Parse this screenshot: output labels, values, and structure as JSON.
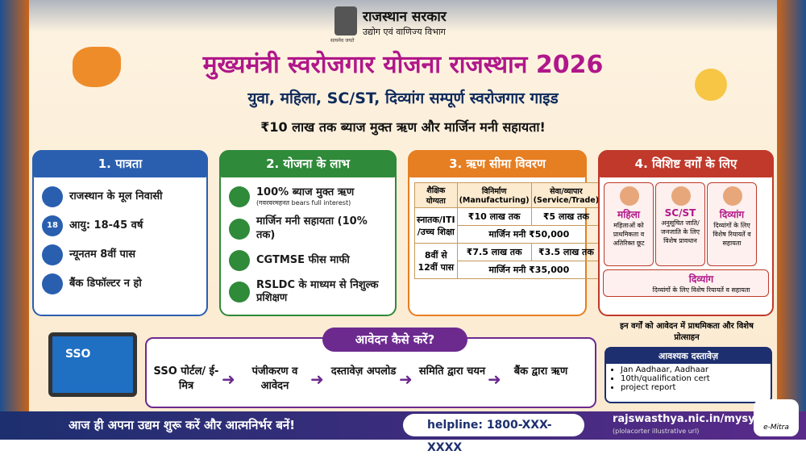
{
  "header": {
    "govt": "राजस्थान सरकार",
    "department": "उद्योग एवं वाणिज्य विभाग",
    "emblem_caption": "सत्यमेव जयते",
    "title": "मुख्यमंत्री स्वरोजगार योजना राजस्थान 2026",
    "subtitle": "युवा, महिला, SC/ST, दिव्यांग सम्पूर्ण स्वरोजगार गाइड",
    "tagline": "₹10 लाख तक ब्याज मुक्त ऋण और मार्जिन मनी सहायता!"
  },
  "eligibility": {
    "title": "1. पात्रता",
    "items": [
      "राजस्थान के मूल निवासी",
      "आयु: 18-45 वर्ष",
      "न्यूनतम 8वीं पास",
      "बैंक डिफॉल्टर न हो"
    ],
    "age_icon": "18"
  },
  "benefits": {
    "title": "2. योजना के लाभ",
    "items": [
      {
        "text": "100% ब्याज मुक्त ऋण",
        "note": "(गवरवरमहनत bears full interest)"
      },
      {
        "text": "मार्जिन मनी सहायता (10% तक)"
      },
      {
        "text": "CGTMSE फीस माफी"
      },
      {
        "text": "RSLDC के माध्यम से निशुल्क प्रशिक्षण"
      }
    ]
  },
  "loan_limits": {
    "title": "3. ऋण सीमा विवरण",
    "headers": [
      "शैक्षिक योग्यता",
      "विनिर्माण (Manufacturing)",
      "सेवा/व्यापार (Service/Trade)"
    ],
    "rows": [
      {
        "qualification": "स्नातक/ITI /उच्च शिक्षा",
        "manufacturing": "₹10 लाख तक",
        "service": "₹5 लाख तक",
        "margin": "मार्जिन मनी ₹50,000"
      },
      {
        "qualification": "8वीं से 12वीं पास",
        "manufacturing": "₹7.5 लाख तक",
        "service": "₹3.5 लाख तक",
        "margin": "मार्जिन मनी ₹35,000"
      }
    ]
  },
  "special": {
    "title": "4. विशिष्ट वर्गों के लिए",
    "cards": [
      {
        "name": "महिला",
        "text": "महिलाओं को प्राथमिकता व अतिरिक्त छूट"
      },
      {
        "name": "SC/ST",
        "text": "अनुसूचित जाति/ जनजाति के लिए विशेष प्रावधान"
      },
      {
        "name": "दिव्यांग",
        "text": "दिव्यांगों के लिए विशेष रियायतें व सहायता"
      }
    ],
    "wide_card": {
      "name": "दिव्यांग",
      "text": "दिव्यांगों के लिए विशेष रियायतें व सहायता"
    },
    "note": "इन वर्गों को आवेदन में प्राथमिकता और विशेष प्रोत्साहन"
  },
  "documents": {
    "title": "आवश्यक दस्तावेज़",
    "items": [
      "Jan Aadhaar, Aadhaar",
      "10th/qualification cert",
      "project report"
    ]
  },
  "process": {
    "title": "आवेदन कैसे करें?",
    "laptop_label": "SSO",
    "steps": [
      "SSO पोर्टल/ ई-मित्र",
      "पंजीकरण व आवेदन",
      "दस्तावेज़ अपलोड",
      "समिति द्वारा चयन",
      "बैंक द्वारा ऋण"
    ]
  },
  "footer": {
    "slogan": "आज ही अपना उद्यम शुरू करें और आत्मनिर्भर बनें!",
    "helpline": "helpline: 1800-XXX-XXXX",
    "website": "rajswasthya.nic.in/mysy",
    "website_note": "(plolacorter illustrative url)",
    "logo": "e-Mitra"
  }
}
